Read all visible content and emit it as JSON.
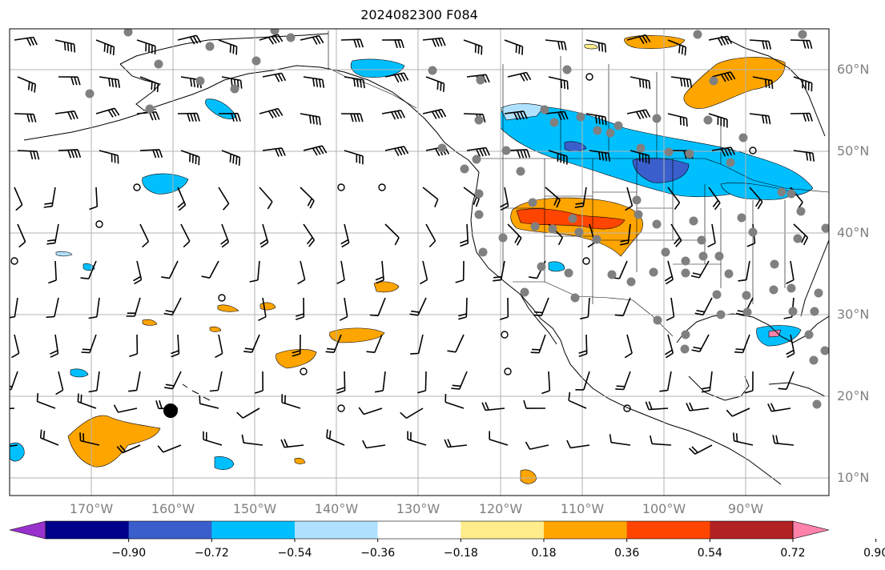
{
  "title": "2024082300 F084",
  "lat_labels": [
    "60°N",
    "50°N",
    "40°N",
    "30°N",
    "20°N",
    "10°N"
  ],
  "lon_labels": [
    "170°W",
    "160°W",
    "150°W",
    "140°W",
    "130°W",
    "120°W",
    "110°W",
    "100°W",
    "90°W"
  ],
  "colorbar": {
    "colors": [
      "#9932cc",
      "#00008b",
      "#3a5fcd",
      "#00bfff",
      "#b0e2ff",
      "#ffffff",
      "#ffec8b",
      "#ffa500",
      "#ff4500",
      "#b22222",
      "#ff82ab"
    ],
    "labels": [
      "−0.90",
      "−0.72",
      "−0.54",
      "−0.36",
      "−0.18",
      "0.18",
      "0.36",
      "0.54",
      "0.72",
      "0.90"
    ]
  },
  "colors": {
    "grid": "#b3b3b3",
    "coast": "#000000",
    "station": "#808080",
    "barb": "#000000"
  }
}
